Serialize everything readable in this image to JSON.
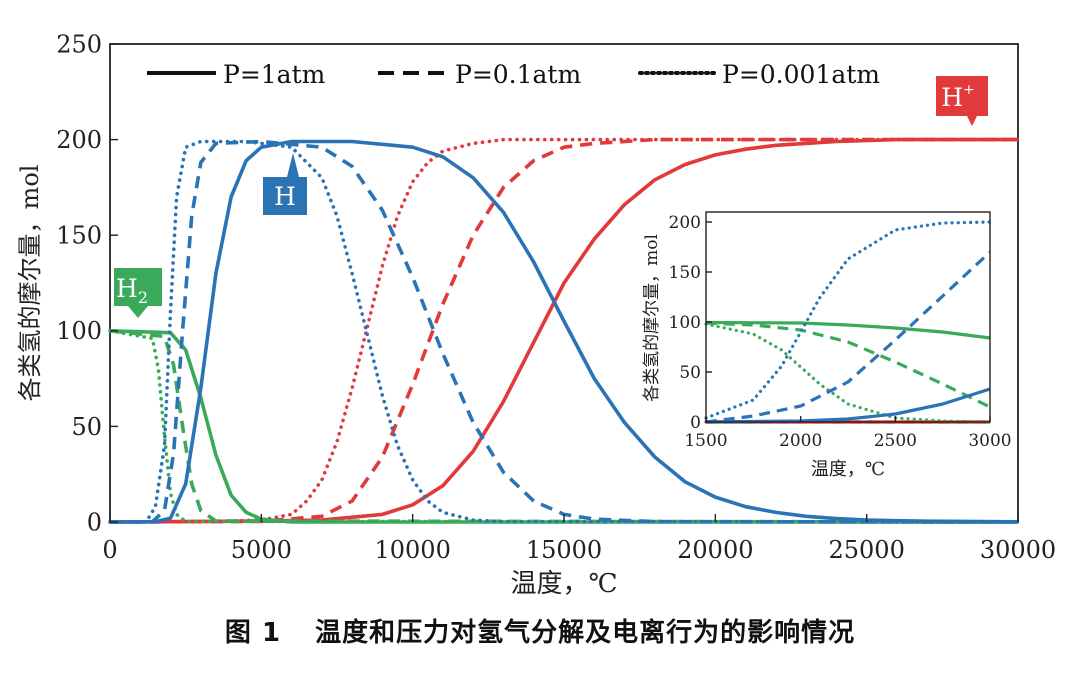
{
  "chart_data": {
    "type": "line",
    "caption": {
      "figure_number": "图 1",
      "text": "温度和压力对氢气分解及电离行为的影响情况"
    },
    "xlabel": "温度，℃",
    "ylabel": "各类氢的摩尔量，mol",
    "xlim": [
      0,
      30000
    ],
    "ylim": [
      0,
      250
    ],
    "x_ticks": [
      "0",
      "5000",
      "10000",
      "15000",
      "20000",
      "25000",
      "30000"
    ],
    "y_ticks": [
      "0",
      "50",
      "100",
      "150",
      "200",
      "250"
    ],
    "legend": [
      {
        "label": "P=1atm",
        "style": "solid"
      },
      {
        "label": "P=0.1atm",
        "style": "dashed"
      },
      {
        "label": "P=0.001atm",
        "style": "dotted"
      }
    ],
    "species_labels": [
      {
        "text": "H",
        "sub": "2",
        "sup": "",
        "color": "#3aaa5a"
      },
      {
        "text": "H",
        "sub": "",
        "sup": "",
        "color": "#2a73b5"
      },
      {
        "text": "H",
        "sub": "",
        "sup": "+",
        "color": "#e23a3a"
      }
    ],
    "colors": {
      "H2": "#3aaa5a",
      "H": "#2a73b5",
      "Hplus": "#e23a3a"
    },
    "series": [
      {
        "name": "H2 P=1atm",
        "species": "H2",
        "pressure": "1atm",
        "style": "solid",
        "x": [
          0,
          2000,
          2500,
          3000,
          3500,
          4000,
          4500,
          5000,
          6000,
          30000
        ],
        "y": [
          100,
          99,
          90,
          65,
          35,
          14,
          5,
          1.5,
          0,
          0
        ]
      },
      {
        "name": "H2 P=0.1atm",
        "species": "H2",
        "pressure": "0.1atm",
        "style": "dashed",
        "x": [
          0,
          1800,
          2100,
          2400,
          2700,
          3000,
          3500,
          30000
        ],
        "y": [
          100,
          97,
          82,
          50,
          20,
          6,
          0.5,
          0
        ]
      },
      {
        "name": "H2 P=0.001atm",
        "species": "H2",
        "pressure": "0.001atm",
        "style": "dotted",
        "x": [
          0,
          1400,
          1600,
          1800,
          2000,
          2200,
          2500,
          30000
        ],
        "y": [
          100,
          96,
          80,
          45,
          15,
          4,
          0.3,
          0
        ]
      },
      {
        "name": "H P=1atm",
        "species": "H",
        "pressure": "1atm",
        "style": "solid",
        "x": [
          0,
          1500,
          2000,
          2500,
          3000,
          3500,
          4000,
          4500,
          5000,
          6000,
          8000,
          10000,
          11000,
          12000,
          13000,
          14000,
          15000,
          16000,
          17000,
          18000,
          19000,
          20000,
          21000,
          22000,
          23000,
          24000,
          25000,
          27000,
          30000
        ],
        "y": [
          0,
          0.1,
          2,
          20,
          70,
          130,
          170,
          189,
          196,
          199,
          199,
          196,
          191,
          180,
          162,
          136,
          105,
          75,
          52,
          34,
          21,
          13,
          8,
          5,
          3,
          1.8,
          1,
          0.4,
          0.1
        ]
      },
      {
        "name": "H P=0.1atm",
        "species": "H",
        "pressure": "0.1atm",
        "style": "dashed",
        "x": [
          0,
          1400,
          1800,
          2100,
          2400,
          2700,
          3000,
          3500,
          5000,
          7000,
          8000,
          9000,
          10000,
          11000,
          12000,
          13000,
          14000,
          15000,
          16000,
          18000,
          30000
        ],
        "y": [
          0,
          0.1,
          6,
          36,
          100,
          160,
          188,
          198,
          199,
          196,
          186,
          163,
          128,
          88,
          52,
          26,
          11,
          4,
          1.5,
          0.2,
          0
        ]
      },
      {
        "name": "H P=0.001atm",
        "species": "H",
        "pressure": "0.001atm",
        "style": "dotted",
        "x": [
          0,
          1200,
          1500,
          1800,
          2000,
          2200,
          2500,
          3000,
          4500,
          6000,
          7000,
          7500,
          8000,
          8500,
          9000,
          9500,
          10000,
          10500,
          11000,
          12000,
          13000,
          30000
        ],
        "y": [
          0,
          0.1,
          8,
          40,
          110,
          170,
          196,
          199,
          199,
          196,
          180,
          160,
          130,
          98,
          66,
          40,
          22,
          11,
          5,
          1,
          0.2,
          0
        ]
      },
      {
        "name": "H+ P=1atm",
        "species": "Hplus",
        "pressure": "1atm",
        "style": "solid",
        "x": [
          0,
          5000,
          7000,
          9000,
          10000,
          11000,
          12000,
          13000,
          14000,
          15000,
          16000,
          17000,
          18000,
          19000,
          20000,
          21000,
          22000,
          23000,
          24000,
          26000,
          28000,
          30000
        ],
        "y": [
          0,
          0.5,
          1,
          4,
          9,
          19,
          37,
          63,
          94,
          125,
          148,
          166,
          179,
          187,
          192,
          195,
          197,
          198,
          199,
          200,
          200,
          200
        ]
      },
      {
        "name": "H+ P=0.1atm",
        "species": "Hplus",
        "pressure": "0.1atm",
        "style": "dashed",
        "x": [
          0,
          5000,
          7000,
          8000,
          9000,
          10000,
          11000,
          12000,
          13000,
          14000,
          15000,
          16000,
          18000,
          30000
        ],
        "y": [
          0,
          0.3,
          3,
          11,
          34,
          72,
          114,
          150,
          175,
          189,
          196,
          198,
          200,
          200
        ]
      },
      {
        "name": "H+ P=0.001atm",
        "species": "Hplus",
        "pressure": "0.001atm",
        "style": "dotted",
        "x": [
          0,
          3000,
          5000,
          6000,
          6500,
          7000,
          7500,
          8000,
          8500,
          9000,
          9500,
          10000,
          10500,
          11000,
          12000,
          13000,
          30000
        ],
        "y": [
          0,
          0.1,
          1,
          4,
          11,
          22,
          42,
          70,
          102,
          134,
          160,
          178,
          188,
          194,
          198,
          200,
          200
        ]
      }
    ],
    "inset": {
      "xlabel": "温度，℃",
      "ylabel": "各类氢的摩尔量，mol",
      "xlim": [
        1500,
        3000
      ],
      "ylim": [
        0,
        210
      ],
      "x_ticks": [
        "1500",
        "2000",
        "2500",
        "3000"
      ],
      "y_ticks": [
        "0",
        "50",
        "100",
        "150",
        "200"
      ],
      "series": [
        {
          "name": "H2 P=1atm",
          "species": "H2",
          "style": "solid",
          "x": [
            1500,
            2000,
            2250,
            2500,
            2750,
            3000
          ],
          "y": [
            99.5,
            99,
            97,
            94,
            90,
            84
          ]
        },
        {
          "name": "H2 P=0.1atm",
          "species": "H2",
          "style": "dashed",
          "x": [
            1500,
            1750,
            2000,
            2250,
            2500,
            2750,
            3000
          ],
          "y": [
            99,
            97,
            92,
            80,
            60,
            38,
            15
          ]
        },
        {
          "name": "H2 P=0.001atm",
          "species": "H2",
          "style": "dotted",
          "x": [
            1500,
            1750,
            1900,
            2000,
            2100,
            2250,
            2500,
            2750,
            3000
          ],
          "y": [
            98,
            88,
            72,
            55,
            38,
            18,
            4,
            1,
            0
          ]
        },
        {
          "name": "H P=1atm",
          "species": "H",
          "style": "solid",
          "x": [
            1500,
            2000,
            2250,
            2500,
            2750,
            3000
          ],
          "y": [
            0,
            1,
            3,
            8,
            18,
            33
          ]
        },
        {
          "name": "H P=0.1atm",
          "species": "H",
          "style": "dashed",
          "x": [
            1500,
            1750,
            2000,
            2250,
            2500,
            2750,
            3000
          ],
          "y": [
            0,
            6,
            16,
            40,
            82,
            126,
            170
          ]
        },
        {
          "name": "H P=0.001atm",
          "species": "H",
          "style": "dotted",
          "x": [
            1500,
            1750,
            1900,
            2000,
            2100,
            2250,
            2500,
            2750,
            3000
          ],
          "y": [
            4,
            22,
            56,
            90,
            124,
            163,
            192,
            199,
            200
          ]
        },
        {
          "name": "H+ P=1atm",
          "species": "Hplus",
          "style": "solid",
          "x": [
            1500,
            3000
          ],
          "y": [
            0,
            0
          ]
        },
        {
          "name": "H+ P=0.1atm",
          "species": "Hplus",
          "style": "dashed",
          "x": [
            1500,
            3000
          ],
          "y": [
            0,
            0
          ]
        },
        {
          "name": "H+ P=0.001atm",
          "species": "Hplus",
          "style": "dotted",
          "x": [
            1500,
            3000
          ],
          "y": [
            0,
            0
          ]
        }
      ]
    }
  }
}
